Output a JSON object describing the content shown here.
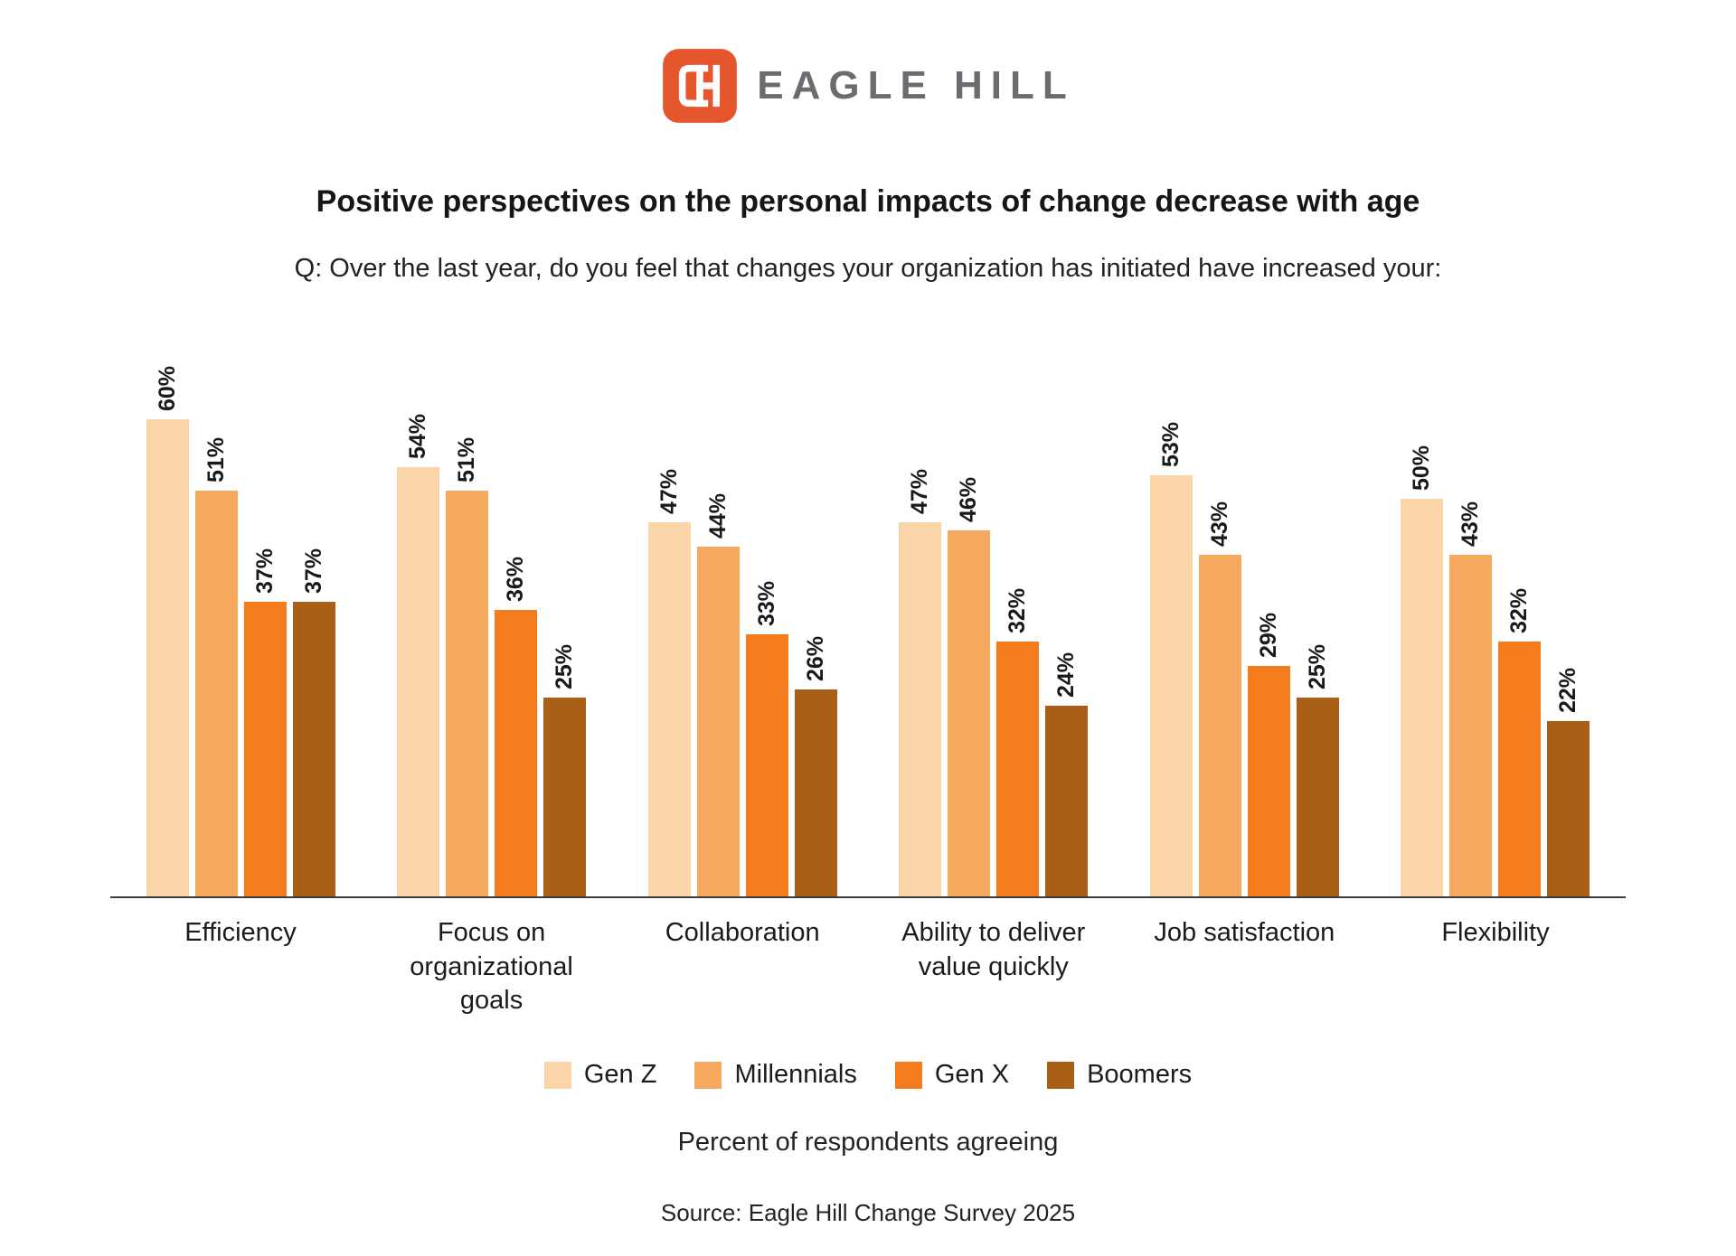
{
  "logo": {
    "brand": "EAGLE HILL",
    "icon": "eagle-hill-monogram-icon",
    "icon_color": "#e5562c"
  },
  "title": "Positive perspectives on the personal impacts of change decrease with age",
  "subtitle": "Q: Over the last year, do you feel that changes your organization has initiated have increased your:",
  "chart_data": {
    "type": "bar",
    "categories": [
      "Efficiency",
      "Focus on organizational goals",
      "Collaboration",
      "Ability to deliver value quickly",
      "Job satisfaction",
      "Flexibility"
    ],
    "series": [
      {
        "name": "Gen Z",
        "color": "#fbd5a9",
        "values": [
          60,
          54,
          47,
          47,
          53,
          50
        ]
      },
      {
        "name": "Millennials",
        "color": "#f7a85f",
        "values": [
          51,
          51,
          44,
          46,
          43,
          43
        ]
      },
      {
        "name": "Gen X",
        "color": "#f47c1d",
        "values": [
          37,
          36,
          33,
          32,
          29,
          32
        ]
      },
      {
        "name": "Boomers",
        "color": "#a95f16",
        "values": [
          37,
          25,
          26,
          24,
          25,
          22
        ]
      }
    ],
    "value_suffix": "%",
    "ylim": [
      0,
      65
    ],
    "grid": false,
    "legend_position": "bottom",
    "xlabel": "Percent of respondents agreeing",
    "value_labels": "rotated-90"
  },
  "footer": {
    "source": "Source: Eagle Hill Change Survey 2025"
  }
}
